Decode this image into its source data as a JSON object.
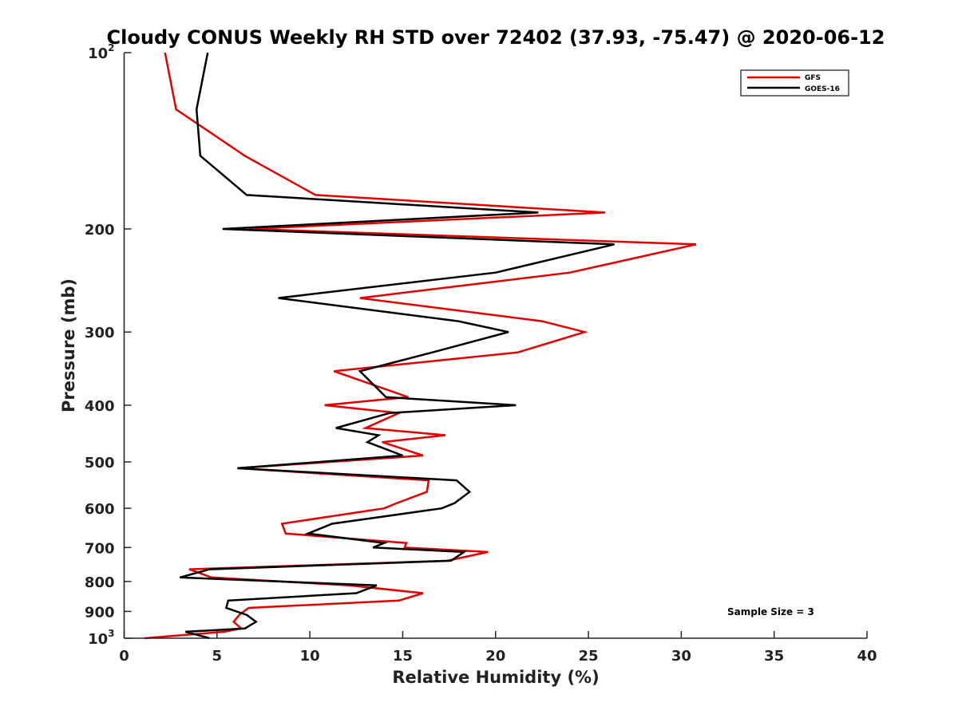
{
  "chart_data": {
    "type": "line",
    "title": "Cloudy CONUS Weekly RH STD over 72402 (37.93, -75.47) @ 2020-06-12",
    "xlabel": "Relative Humidity (%)",
    "ylabel": "Pressure (mb)",
    "xlim": [
      0,
      40
    ],
    "ylim": [
      100,
      1000
    ],
    "y_scale": "log",
    "y_reversed": true,
    "x_ticks": [
      "0",
      "5",
      "10",
      "15",
      "20",
      "25",
      "30",
      "35",
      "40"
    ],
    "y_ticks": [
      {
        "value": 100,
        "base": "10",
        "exp": "2"
      },
      {
        "value": 200,
        "text": "200"
      },
      {
        "value": 300,
        "text": "300"
      },
      {
        "value": 400,
        "text": "400"
      },
      {
        "value": 500,
        "text": "500"
      },
      {
        "value": 600,
        "text": "600"
      },
      {
        "value": 700,
        "text": "700"
      },
      {
        "value": 800,
        "text": "800"
      },
      {
        "value": 900,
        "text": "900"
      },
      {
        "value": 1000,
        "base": "10",
        "exp": "3"
      }
    ],
    "grid": false,
    "legend": {
      "placement": "top-right"
    },
    "annotation": "Sample Size = 3",
    "series": [
      {
        "name": "GFS",
        "color": "#e00000",
        "points": [
          [
            2.2,
            100
          ],
          [
            2.8,
            125
          ],
          [
            6.5,
            150
          ],
          [
            10.3,
            175
          ],
          [
            25.9,
            187.5
          ],
          [
            6.7,
            200
          ],
          [
            30.8,
            212.5
          ],
          [
            24.0,
            237.5
          ],
          [
            12.7,
            262.5
          ],
          [
            22.5,
            287.5
          ],
          [
            24.8,
            300
          ],
          [
            21.2,
            325
          ],
          [
            11.3,
            350
          ],
          [
            15.3,
            387.5
          ],
          [
            10.8,
            400
          ],
          [
            14.8,
            412.5
          ],
          [
            13.0,
            437.5
          ],
          [
            17.3,
            450
          ],
          [
            13.9,
            462.5
          ],
          [
            16.1,
            487.5
          ],
          [
            6.1,
            512.5
          ],
          [
            16.4,
            537.5
          ],
          [
            16.3,
            562.5
          ],
          [
            14.7,
            587.5
          ],
          [
            14.0,
            600
          ],
          [
            8.5,
            637.5
          ],
          [
            8.7,
            662.5
          ],
          [
            15.2,
            687.5
          ],
          [
            15.1,
            700
          ],
          [
            19.6,
            712.5
          ],
          [
            17.4,
            737.5
          ],
          [
            3.5,
            762.5
          ],
          [
            4.7,
            787.5
          ],
          [
            12.1,
            812.5
          ],
          [
            16.1,
            837.5
          ],
          [
            14.8,
            862.5
          ],
          [
            6.7,
            887.5
          ],
          [
            6.2,
            912.5
          ],
          [
            5.9,
            937.5
          ],
          [
            6.3,
            962.5
          ],
          [
            5.4,
            975
          ],
          [
            1.1,
            1000
          ]
        ]
      },
      {
        "name": "GOES-16",
        "color": "#000000",
        "points": [
          [
            4.5,
            100
          ],
          [
            3.9,
            125
          ],
          [
            4.1,
            150
          ],
          [
            6.6,
            175
          ],
          [
            22.3,
            187.5
          ],
          [
            5.3,
            200
          ],
          [
            26.4,
            212.5
          ],
          [
            20.0,
            237.5
          ],
          [
            8.3,
            262.5
          ],
          [
            18.0,
            287.5
          ],
          [
            20.7,
            300
          ],
          [
            16.6,
            325
          ],
          [
            12.7,
            350
          ],
          [
            14.1,
            387.5
          ],
          [
            21.1,
            400
          ],
          [
            14.3,
            412.5
          ],
          [
            11.4,
            437.5
          ],
          [
            13.7,
            450
          ],
          [
            13.1,
            462.5
          ],
          [
            15.0,
            487.5
          ],
          [
            6.1,
            512.5
          ],
          [
            17.9,
            537.5
          ],
          [
            18.6,
            562.5
          ],
          [
            17.8,
            587.5
          ],
          [
            17.1,
            600
          ],
          [
            11.2,
            637.5
          ],
          [
            9.9,
            662.5
          ],
          [
            14.0,
            687.5
          ],
          [
            13.4,
            700
          ],
          [
            18.3,
            712.5
          ],
          [
            17.6,
            737.5
          ],
          [
            4.6,
            762.5
          ],
          [
            3.0,
            787.5
          ],
          [
            13.6,
            812.5
          ],
          [
            12.5,
            837.5
          ],
          [
            5.6,
            862.5
          ],
          [
            5.5,
            887.5
          ],
          [
            6.6,
            912.5
          ],
          [
            7.1,
            937.5
          ],
          [
            6.5,
            962.5
          ],
          [
            3.3,
            975
          ],
          [
            4.6,
            1000
          ]
        ]
      }
    ]
  }
}
